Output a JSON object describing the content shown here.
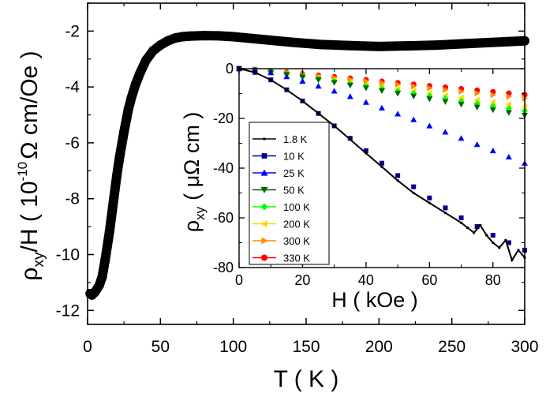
{
  "chart_data": [
    {
      "type": "line",
      "xlabel": "T ( K )",
      "ylabel": {
        "base": "ρ",
        "sub": "xy",
        "rest": "/H ( 10",
        "sup": "-10",
        "unit": "Ω cm/Oe )"
      },
      "xlim": [
        0,
        300
      ],
      "ylim": [
        -12.5,
        -1
      ],
      "xticks": [
        "0",
        "50",
        "100",
        "150",
        "200",
        "250",
        "300"
      ],
      "yticks": [
        "-2",
        "-4",
        "-6",
        "-8",
        "-10",
        "-12"
      ],
      "series": [
        {
          "color": "#000000",
          "marker": "filled-circle",
          "x": [
            1.8,
            3,
            5,
            8,
            10,
            12,
            15,
            18,
            20,
            22,
            25,
            28,
            30,
            33,
            36,
            40,
            45,
            50,
            55,
            60,
            65,
            70,
            80,
            90,
            100,
            120,
            140,
            160,
            180,
            200,
            220,
            240,
            260,
            280,
            300
          ],
          "y": [
            -11.4,
            -11.45,
            -11.35,
            -11.1,
            -10.8,
            -10.2,
            -9.2,
            -8.0,
            -7.2,
            -6.5,
            -5.6,
            -4.8,
            -4.4,
            -3.9,
            -3.5,
            -3.05,
            -2.7,
            -2.5,
            -2.35,
            -2.25,
            -2.2,
            -2.18,
            -2.16,
            -2.17,
            -2.2,
            -2.3,
            -2.4,
            -2.48,
            -2.52,
            -2.55,
            -2.53,
            -2.5,
            -2.45,
            -2.4,
            -2.35
          ]
        }
      ]
    },
    {
      "type": "scatter",
      "xlabel": "H ( kOe )",
      "ylabel": {
        "base": "ρ",
        "sub": "xy",
        "rest": "( μΩ cm )"
      },
      "xlim": [
        0,
        90
      ],
      "ylim": [
        -80,
        0
      ],
      "xticks": [
        "0",
        "20",
        "40",
        "60",
        "80"
      ],
      "yticks": [
        "0",
        "-20",
        "-40",
        "-60",
        "-80"
      ],
      "legend_position": "center-left",
      "series": [
        {
          "name": "1.8 K",
          "color": "#000000",
          "marker": "square-small",
          "line": true,
          "x": [
            0,
            5,
            10,
            15,
            20,
            25,
            30,
            35,
            40,
            45,
            50,
            55,
            60,
            65,
            70,
            72,
            74,
            76,
            78,
            80,
            82,
            84,
            86,
            88,
            90
          ],
          "y": [
            0,
            -1.5,
            -4.5,
            -8.5,
            -13,
            -18,
            -23,
            -28.5,
            -34,
            -39.5,
            -45,
            -50,
            -54,
            -58,
            -62,
            -64,
            -66,
            -63,
            -67,
            -70,
            -72,
            -69,
            -77,
            -73,
            -76
          ]
        },
        {
          "name": "10 K",
          "color": "#00008b",
          "marker": "square",
          "x": [
            0,
            5,
            10,
            15,
            20,
            25,
            30,
            35,
            40,
            45,
            50,
            55,
            60,
            65,
            70,
            75,
            80,
            85,
            90
          ],
          "y": [
            0,
            -1.5,
            -4.5,
            -8.5,
            -13,
            -18,
            -23,
            -28,
            -33,
            -38,
            -43,
            -47.5,
            -52,
            -56,
            -60,
            -63.5,
            -67,
            -70,
            -73
          ]
        },
        {
          "name": "25 K",
          "color": "#0000ff",
          "marker": "triangle-up",
          "x": [
            0,
            5,
            10,
            15,
            20,
            25,
            30,
            35,
            40,
            45,
            50,
            55,
            60,
            65,
            70,
            75,
            80,
            85,
            90
          ],
          "y": [
            0,
            -0.5,
            -1.6,
            -3.2,
            -5,
            -7,
            -9,
            -11.2,
            -13.5,
            -15.8,
            -18.2,
            -20.5,
            -23,
            -25.5,
            -28,
            -30.5,
            -33,
            -35.5,
            -38
          ]
        },
        {
          "name": "50 K",
          "color": "#006400",
          "marker": "triangle-down",
          "x": [
            0,
            5,
            10,
            15,
            20,
            25,
            30,
            35,
            40,
            45,
            50,
            55,
            60,
            65,
            70,
            75,
            80,
            85,
            90
          ],
          "y": [
            0,
            -0.6,
            -1.5,
            -2.4,
            -3.4,
            -4.5,
            -5.6,
            -6.7,
            -7.8,
            -8.9,
            -10,
            -11.1,
            -12.2,
            -13.3,
            -14.4,
            -15.5,
            -16.6,
            -17.7,
            -18.8
          ]
        },
        {
          "name": "100 K",
          "color": "#00ff00",
          "marker": "diamond",
          "x": [
            0,
            5,
            10,
            15,
            20,
            25,
            30,
            35,
            40,
            45,
            50,
            55,
            60,
            65,
            70,
            75,
            80,
            85,
            90
          ],
          "y": [
            0,
            -0.5,
            -1.3,
            -2.1,
            -3,
            -4,
            -5,
            -6,
            -7,
            -8,
            -9,
            -10,
            -11,
            -12,
            -13,
            -14,
            -15,
            -16,
            -17
          ]
        },
        {
          "name": "200 K",
          "color": "#ffd700",
          "marker": "triangle-left",
          "x": [
            0,
            5,
            10,
            15,
            20,
            25,
            30,
            35,
            40,
            45,
            50,
            55,
            60,
            65,
            70,
            75,
            80,
            85,
            90
          ],
          "y": [
            0,
            -0.5,
            -1.2,
            -1.9,
            -2.7,
            -3.6,
            -4.5,
            -5.4,
            -6.3,
            -7.2,
            -8.1,
            -9,
            -9.9,
            -10.8,
            -11.7,
            -12.6,
            -13.5,
            -14.4,
            -15.3
          ]
        },
        {
          "name": "300 K",
          "color": "#ff8c00",
          "marker": "triangle-right",
          "x": [
            0,
            5,
            10,
            15,
            20,
            25,
            30,
            35,
            40,
            45,
            50,
            55,
            60,
            65,
            70,
            75,
            80,
            85,
            90
          ],
          "y": [
            0,
            -0.4,
            -1,
            -1.6,
            -2.2,
            -2.9,
            -3.6,
            -4.3,
            -5,
            -5.7,
            -6.4,
            -7.1,
            -7.8,
            -8.5,
            -9.2,
            -9.9,
            -10.6,
            -11.3,
            -12
          ]
        },
        {
          "name": "330 K",
          "color": "#ff0000",
          "marker": "circle",
          "x": [
            0,
            5,
            10,
            15,
            20,
            25,
            30,
            35,
            40,
            45,
            50,
            55,
            60,
            65,
            70,
            75,
            80,
            85,
            90
          ],
          "y": [
            0,
            -0.4,
            -0.9,
            -1.5,
            -2.1,
            -2.7,
            -3.3,
            -3.9,
            -4.5,
            -5.1,
            -5.7,
            -6.3,
            -6.9,
            -7.5,
            -8.1,
            -8.7,
            -9.3,
            -9.9,
            -10.5
          ]
        }
      ]
    }
  ]
}
